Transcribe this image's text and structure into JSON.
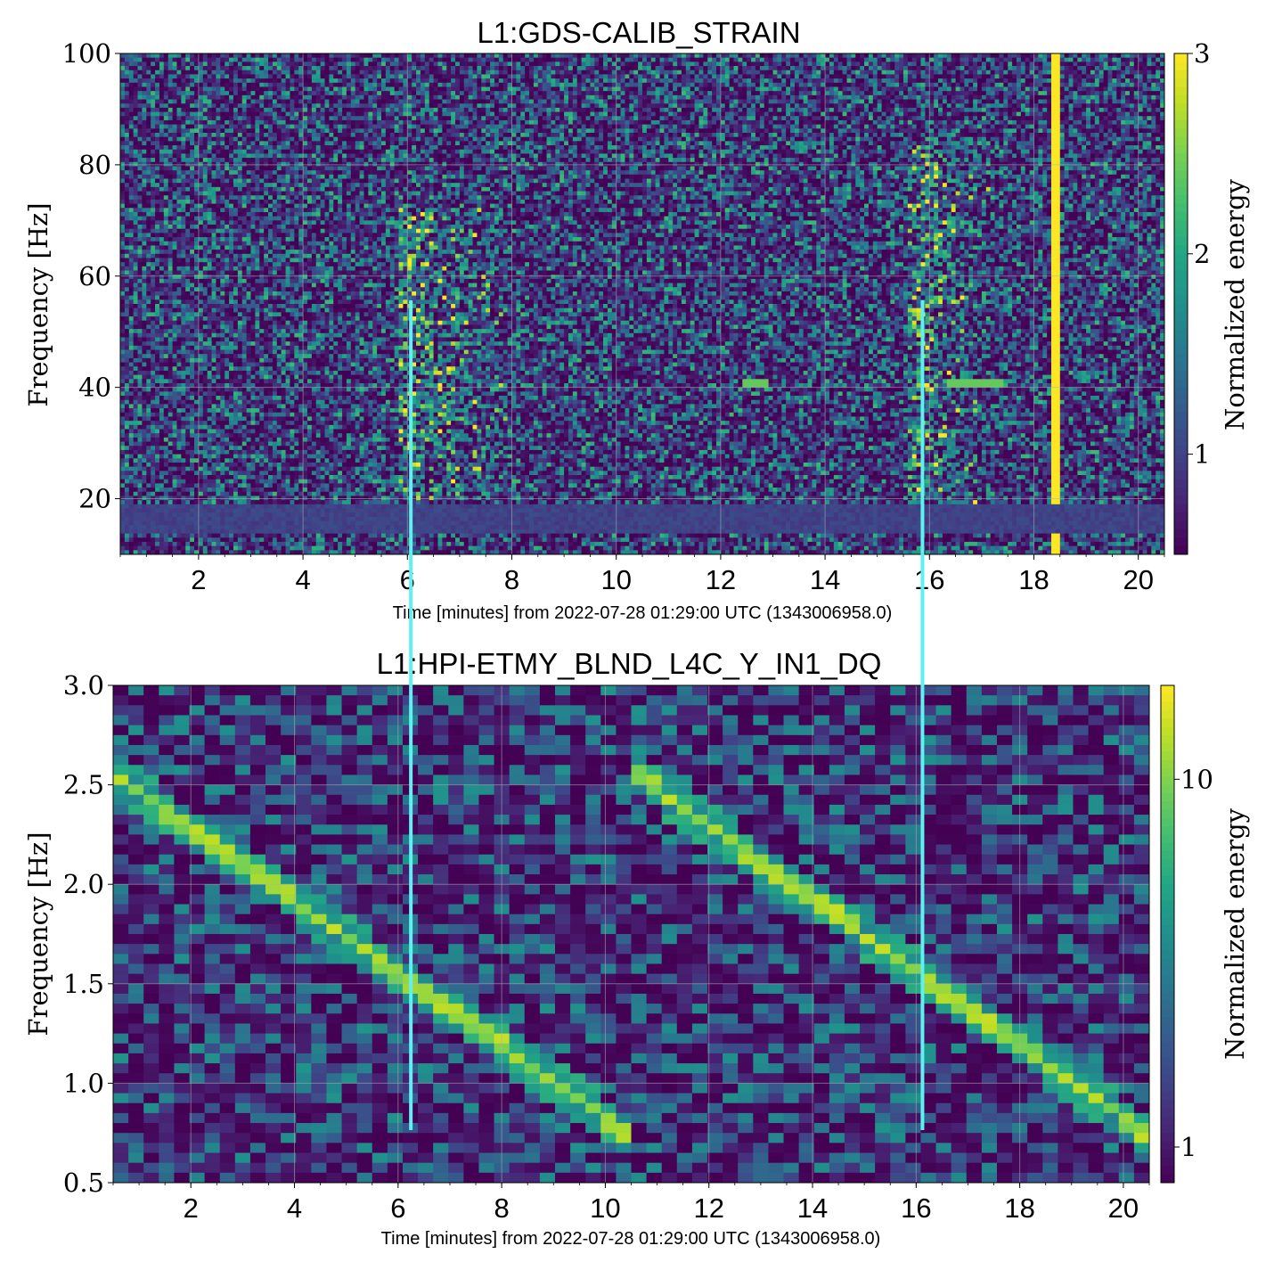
{
  "chart_data": [
    {
      "type": "heatmap",
      "title": "L1:GDS-CALIB_STRAIN",
      "xlabel": "Time [minutes] from 2022-07-28 01:29:00 UTC (1343006958.0)",
      "ylabel": "Frequency [Hz]",
      "colorbar_label": "Normalized energy",
      "xlim": [
        0.5,
        20.5
      ],
      "ylim": [
        10,
        100
      ],
      "xticks": [
        "2",
        "4",
        "6",
        "8",
        "10",
        "12",
        "14",
        "16",
        "18",
        "20"
      ],
      "yticks": [
        "20",
        "40",
        "60",
        "80",
        "100"
      ],
      "cbar_ticks": [
        "1",
        "2",
        "3"
      ],
      "cbar_range": [
        0.5,
        3
      ],
      "grid": true,
      "colormap": "viridis",
      "features": [
        {
          "kind": "glitch",
          "t_center": 6.2,
          "f_low": 20,
          "f_high": 72,
          "t_extent": 1.8
        },
        {
          "kind": "glitch",
          "t_center": 15.9,
          "f_low": 18,
          "f_high": 85,
          "t_extent": 1.3
        },
        {
          "kind": "line",
          "t_start": 16.3,
          "t_end": 17.4,
          "freq": 41
        },
        {
          "kind": "line",
          "t_start": 12.4,
          "t_end": 12.9,
          "freq": 41
        },
        {
          "kind": "broadband",
          "t": 18.4,
          "f_low": 10,
          "f_high": 100,
          "value": 3
        },
        {
          "kind": "band",
          "f_low": 14,
          "f_high": 19,
          "value": 1.0
        }
      ]
    },
    {
      "type": "heatmap",
      "title": "L1:HPI-ETMY_BLND_L4C_Y_IN1_DQ",
      "xlabel": "Time [minutes] from 2022-07-28 01:29:00 UTC (1343006958.0)",
      "ylabel": "Frequency [Hz]",
      "colorbar_label": "Normalized energy",
      "xlim": [
        0.5,
        20.5
      ],
      "ylim": [
        0.5,
        3.0
      ],
      "xticks": [
        "2",
        "4",
        "6",
        "8",
        "10",
        "12",
        "14",
        "16",
        "18",
        "20"
      ],
      "yticks": [
        "0.5",
        "1.0",
        "1.5",
        "2.0",
        "2.5",
        "3.0"
      ],
      "cbar_ticks": [
        "1",
        "10"
      ],
      "cbar_scale": "log",
      "cbar_range": [
        0.8,
        18
      ],
      "grid": true,
      "colormap": "viridis",
      "features": [
        {
          "kind": "chirp",
          "t_start": 0.5,
          "f_start": 2.55,
          "t_end": 10.4,
          "f_end": 0.75
        },
        {
          "kind": "chirp",
          "t_start": 10.6,
          "f_start": 2.55,
          "t_end": 20.4,
          "f_end": 0.75
        }
      ]
    }
  ],
  "overlay": {
    "color": "#5ff0f0",
    "markers": [
      {
        "t": 6.1
      },
      {
        "t": 15.9
      }
    ]
  }
}
